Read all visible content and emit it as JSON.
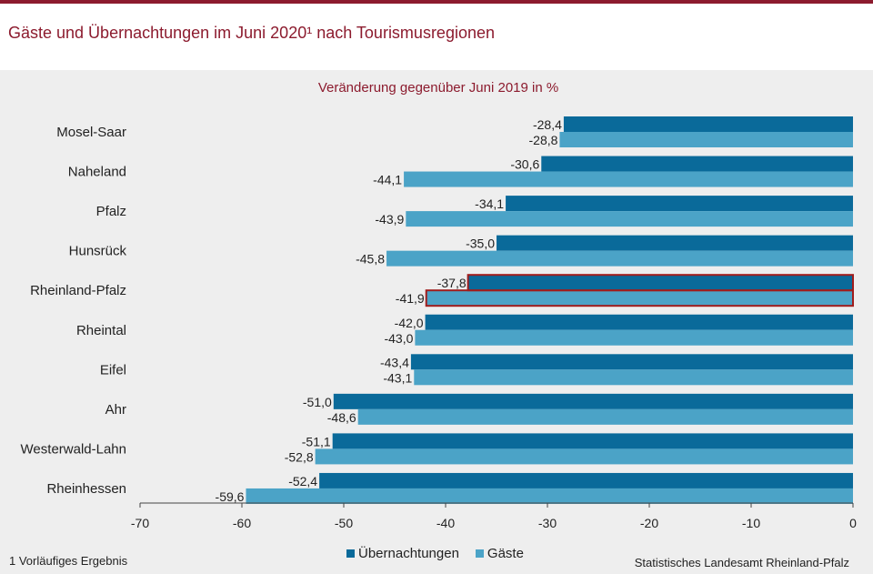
{
  "header": {
    "title": "Gäste und Übernachtungen im Juni 2020¹ nach Tourismusregionen"
  },
  "footnote": "1 Vorläufiges Ergebnis",
  "source": "Statistisches Landesamt Rheinland-Pfalz",
  "colors": {
    "brand": "#8c1b2e",
    "uebernachtungen": "#0a6a9a",
    "gaeste": "#4ba3c7",
    "highlight_border": "#a01c1c"
  },
  "chart_data": {
    "type": "bar",
    "orientation": "horizontal",
    "title": "Veränderung gegenüber Juni 2019 in %",
    "categories": [
      "Mosel-Saar",
      "Naheland",
      "Pfalz",
      "Hunsrück",
      "Rheinland-Pfalz",
      "Rheintal",
      "Eifel",
      "Ahr",
      "Westerwald-Lahn",
      "Rheinhessen"
    ],
    "highlighted_category": "Rheinland-Pfalz",
    "series": [
      {
        "name": "Übernachtungen",
        "values": [
          -28.4,
          -30.6,
          -34.1,
          -35.0,
          -37.8,
          -42.0,
          -43.4,
          -51.0,
          -51.1,
          -52.4
        ],
        "labels": [
          "-28,4",
          "-30,6",
          "-34,1",
          "-35,0",
          "-37,8",
          "-42,0",
          "-43,4",
          "-51,0",
          "-51,1",
          "-52,4"
        ]
      },
      {
        "name": "Gäste",
        "values": [
          -28.8,
          -44.1,
          -43.9,
          -45.8,
          -41.9,
          -43.0,
          -43.1,
          -48.6,
          -52.8,
          -59.6
        ],
        "labels": [
          "-28,8",
          "-44,1",
          "-43,9",
          "-45,8",
          "-41,9",
          "-43,0",
          "-43,1",
          "-48,6",
          "-52,8",
          "-59,6"
        ]
      }
    ],
    "xlim": [
      -70,
      0
    ],
    "xticks": [
      -70,
      -60,
      -50,
      -40,
      -30,
      -20,
      -10,
      0
    ],
    "grid": false,
    "legend_position": "bottom"
  }
}
